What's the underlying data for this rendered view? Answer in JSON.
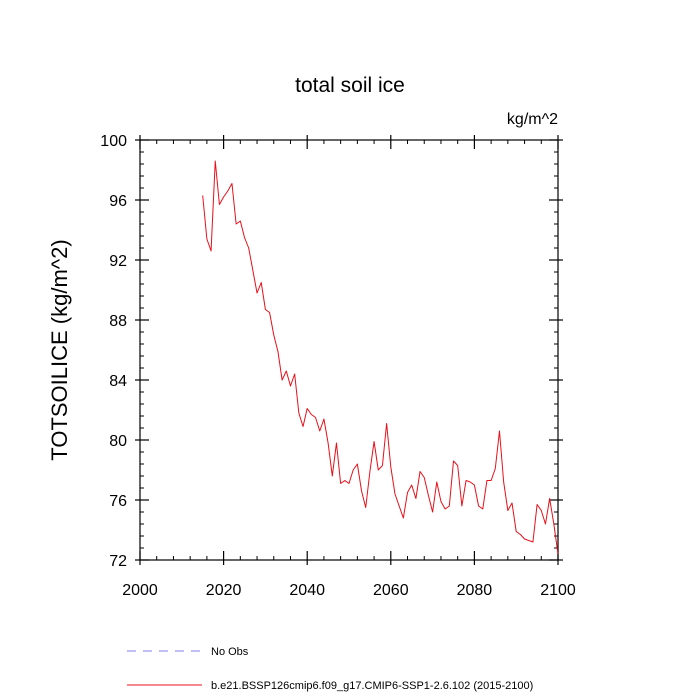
{
  "chart_data": {
    "type": "line",
    "title": "total soil ice",
    "units_label": "kg/m^2",
    "ylabel": "TOTSOILICE  (kg/m^2)",
    "xlabel": "",
    "xlim": [
      2000,
      2100
    ],
    "ylim": [
      72,
      100
    ],
    "xticks": [
      2000,
      2020,
      2040,
      2060,
      2080,
      2100
    ],
    "yticks": [
      72,
      76,
      80,
      84,
      88,
      92,
      96,
      100
    ],
    "grid": false,
    "series": [
      {
        "name": "b.e21.BSSP126cmip6.f09_g17.CMIP6-SSP1-2.6.102 (2015-2100)",
        "color": "#e8101a",
        "style": "solid",
        "x": [
          2015,
          2016,
          2017,
          2018,
          2019,
          2020,
          2021,
          2022,
          2023,
          2024,
          2025,
          2026,
          2027,
          2028,
          2029,
          2030,
          2031,
          2032,
          2033,
          2034,
          2035,
          2036,
          2037,
          2038,
          2039,
          2040,
          2041,
          2042,
          2043,
          2044,
          2045,
          2046,
          2047,
          2048,
          2049,
          2050,
          2051,
          2052,
          2053,
          2054,
          2055,
          2056,
          2057,
          2058,
          2059,
          2060,
          2061,
          2062,
          2063,
          2064,
          2065,
          2066,
          2067,
          2068,
          2069,
          2070,
          2071,
          2072,
          2073,
          2074,
          2075,
          2076,
          2077,
          2078,
          2079,
          2080,
          2081,
          2082,
          2083,
          2084,
          2085,
          2086,
          2087,
          2088,
          2089,
          2090,
          2091,
          2092,
          2093,
          2094,
          2095,
          2096,
          2097,
          2098,
          2099,
          2100
        ],
        "values": [
          96.3,
          93.4,
          92.6,
          98.6,
          95.7,
          96.2,
          96.6,
          97.1,
          94.4,
          94.6,
          93.5,
          92.8,
          91.3,
          89.8,
          90.5,
          88.7,
          88.5,
          87.0,
          85.9,
          84.0,
          84.6,
          83.6,
          84.4,
          81.8,
          80.9,
          82.1,
          81.7,
          81.5,
          80.6,
          81.4,
          79.8,
          77.6,
          79.8,
          77.1,
          77.3,
          77.1,
          78.0,
          78.4,
          76.6,
          75.5,
          77.9,
          79.9,
          78.0,
          78.3,
          81.1,
          78.2,
          76.4,
          75.6,
          74.8,
          76.5,
          77.0,
          76.1,
          77.9,
          77.5,
          76.3,
          75.2,
          77.2,
          75.9,
          75.4,
          75.6,
          78.6,
          78.3,
          75.6,
          77.3,
          77.2,
          77.0,
          75.6,
          75.4,
          77.3,
          77.3,
          78.1,
          80.6,
          77.2,
          75.3,
          75.8,
          73.9,
          73.7,
          73.4,
          73.3,
          73.2,
          75.7,
          75.3,
          74.4,
          76.1,
          74.4,
          72.4
        ]
      },
      {
        "name": "No Obs",
        "color": "#8080ee",
        "style": "dashed",
        "x": [],
        "values": []
      }
    ],
    "legend": "bottom-left"
  }
}
